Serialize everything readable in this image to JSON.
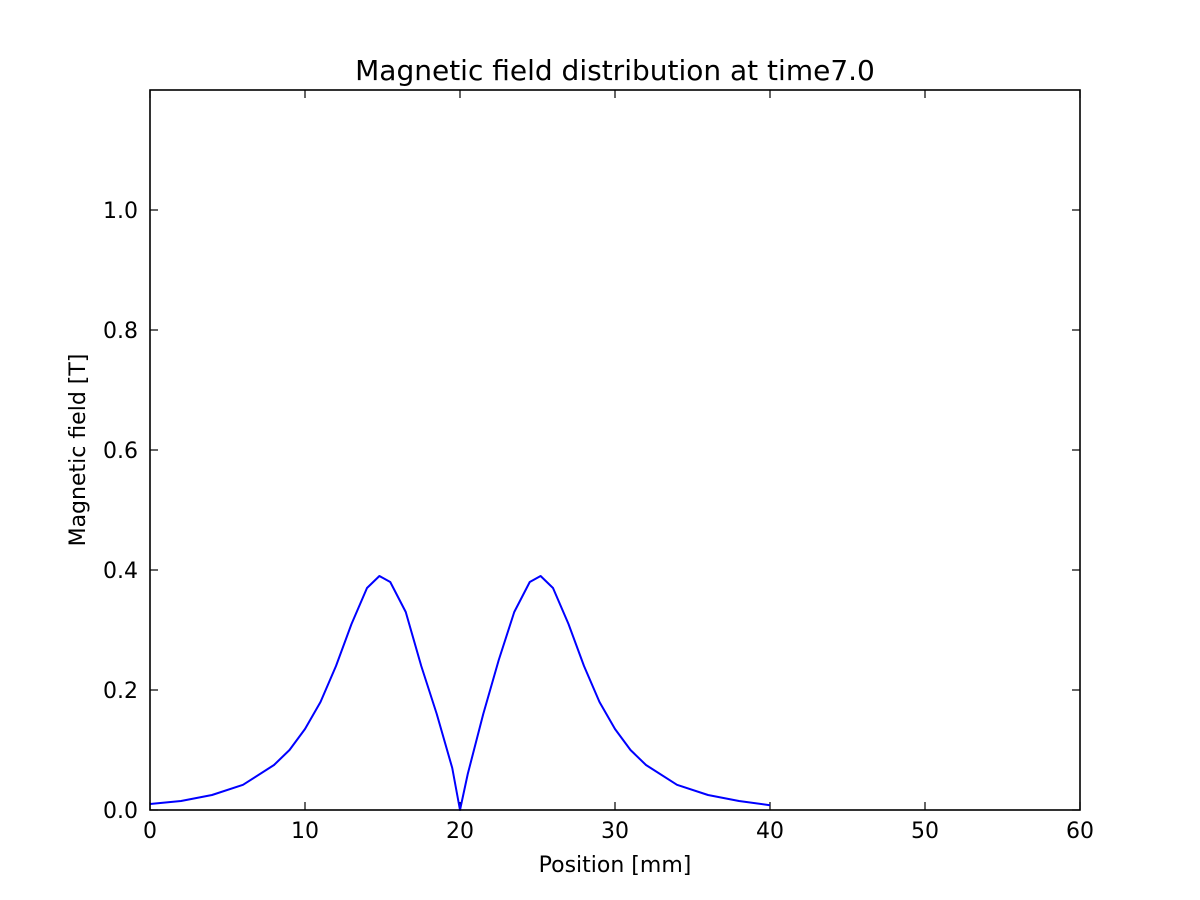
{
  "chart_data": {
    "type": "line",
    "title": "Magnetic field distribution at time7.0",
    "xlabel": "Position [mm]",
    "ylabel": "Magnetic field [T]",
    "xlim": [
      0,
      60
    ],
    "ylim": [
      0,
      1.2
    ],
    "xticks": [
      0,
      10,
      20,
      30,
      40,
      50,
      60
    ],
    "yticks": [
      0.0,
      0.2,
      0.4,
      0.6,
      0.8,
      1.0
    ],
    "xtick_labels": [
      "0",
      "10",
      "20",
      "30",
      "40",
      "50",
      "60"
    ],
    "ytick_labels": [
      "0.0",
      "0.2",
      "0.4",
      "0.6",
      "0.8",
      "1.0"
    ],
    "grid": false,
    "series": [
      {
        "color": "#0000ff",
        "x": [
          0,
          2,
          4,
          6,
          8,
          9,
          10,
          11,
          12,
          13,
          14,
          14.8,
          15.5,
          16.5,
          17.5,
          18.5,
          19.5,
          20,
          20.5,
          21.5,
          22.5,
          23.5,
          24.5,
          25.2,
          26,
          27,
          28,
          29,
          30,
          31,
          32,
          34,
          36,
          38,
          40
        ],
        "y": [
          0.01,
          0.015,
          0.025,
          0.042,
          0.075,
          0.1,
          0.135,
          0.18,
          0.24,
          0.31,
          0.37,
          0.39,
          0.38,
          0.33,
          0.24,
          0.16,
          0.07,
          0.0,
          0.06,
          0.16,
          0.25,
          0.33,
          0.38,
          0.39,
          0.37,
          0.31,
          0.24,
          0.18,
          0.135,
          0.1,
          0.075,
          0.042,
          0.025,
          0.015,
          0.008
        ]
      }
    ]
  }
}
